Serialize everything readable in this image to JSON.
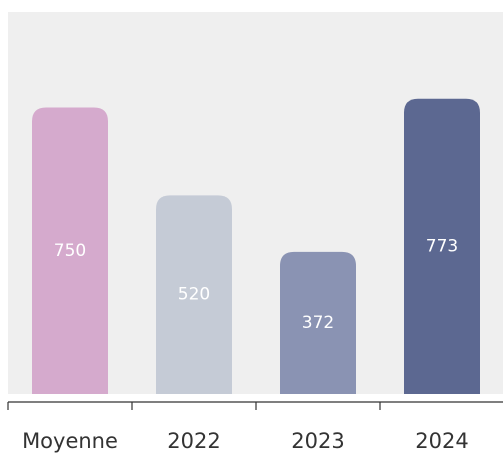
{
  "chart_data": {
    "type": "bar",
    "categories": [
      "Moyenne",
      "2022",
      "2023",
      "2024"
    ],
    "values": [
      750,
      520,
      372,
      773
    ],
    "colors": [
      "#d5aacd",
      "#c5cbd6",
      "#8a93b3",
      "#5c6891"
    ],
    "ylim": [
      0,
      1000
    ]
  }
}
